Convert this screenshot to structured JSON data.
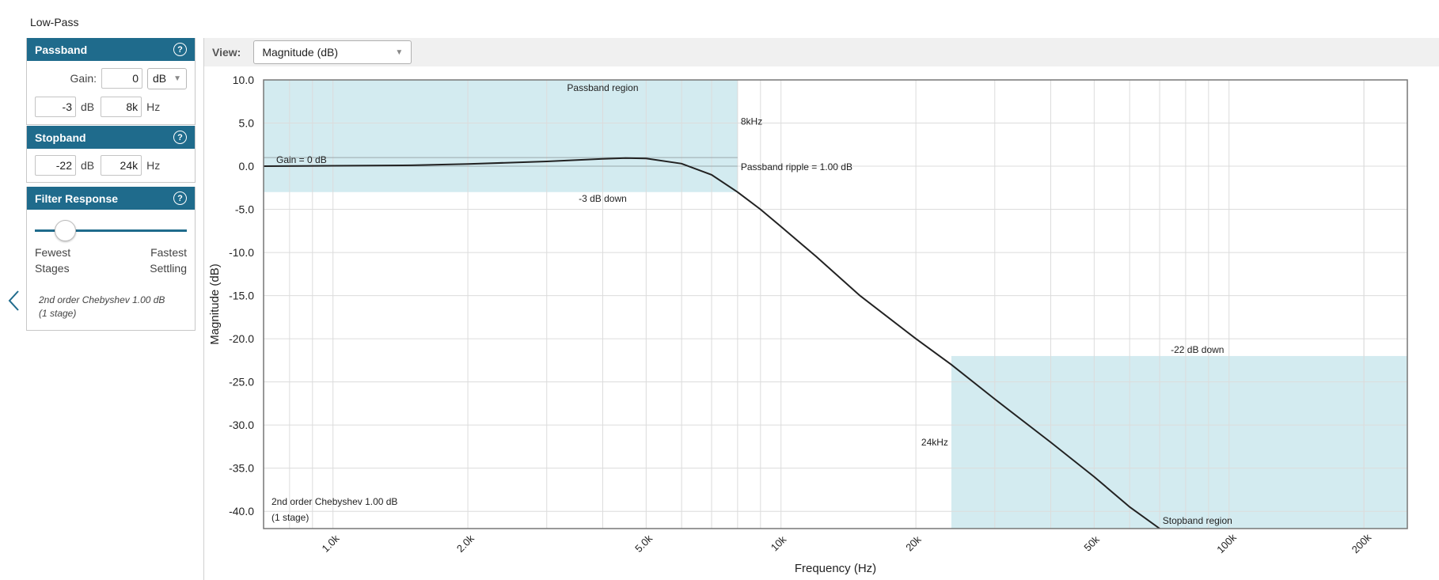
{
  "page_title": "Low-Pass",
  "passband": {
    "title": "Passband",
    "help": "?",
    "gain_label": "Gain:",
    "gain_value": "0",
    "gain_unit": "dB",
    "atten_value": "-3",
    "atten_unit": "dB",
    "freq_value": "8k",
    "freq_unit": "Hz"
  },
  "stopband": {
    "title": "Stopband",
    "help": "?",
    "atten_value": "-22",
    "atten_unit": "dB",
    "freq_value": "24k",
    "freq_unit": "Hz"
  },
  "filter_response": {
    "title": "Filter Response",
    "help": "?",
    "left_label_1": "Fewest",
    "left_label_2": "Stages",
    "right_label_1": "Fastest",
    "right_label_2": "Settling",
    "slider_value": 0.15,
    "desc_line1": "2nd order Chebyshev 1.00 dB",
    "desc_line2": "(1 stage)"
  },
  "toolbar": {
    "view_label": "View:",
    "view_value": "Magnitude (dB)"
  },
  "colors": {
    "header_bg": "#1f6b8c",
    "region_fill": "#d3ebf0",
    "curve": "#222222",
    "grid": "#dcdcdc"
  },
  "chart_data": {
    "type": "line",
    "xlabel": "Frequency (Hz)",
    "ylabel": "Magnitude (dB)",
    "x_scale": "log",
    "xlim": [
      700,
      250000
    ],
    "ylim": [
      -42,
      10
    ],
    "grid": true,
    "x_ticks": [
      {
        "v": 1000,
        "label": "1.0k"
      },
      {
        "v": 2000,
        "label": "2.0k"
      },
      {
        "v": 5000,
        "label": "5.0k"
      },
      {
        "v": 10000,
        "label": "10k"
      },
      {
        "v": 20000,
        "label": "20k"
      },
      {
        "v": 50000,
        "label": "50k"
      },
      {
        "v": 100000,
        "label": "100k"
      },
      {
        "v": 200000,
        "label": "200k"
      }
    ],
    "y_ticks": [
      {
        "v": 10,
        "label": "10.0"
      },
      {
        "v": 5,
        "label": "5.0"
      },
      {
        "v": 0,
        "label": "0.0"
      },
      {
        "v": -5,
        "label": "-5.0"
      },
      {
        "v": -10,
        "label": "-10.0"
      },
      {
        "v": -15,
        "label": "-15.0"
      },
      {
        "v": -20,
        "label": "-20.0"
      },
      {
        "v": -25,
        "label": "-25.0"
      },
      {
        "v": -30,
        "label": "-30.0"
      },
      {
        "v": -35,
        "label": "-35.0"
      },
      {
        "v": -40,
        "label": "-40.0"
      }
    ],
    "series": [
      {
        "x": [
          700,
          1000,
          1500,
          2000,
          3000,
          4000,
          4500,
          5000,
          6000,
          7000,
          8000,
          9000,
          10000,
          12000,
          15000,
          20000,
          24000,
          30000,
          40000,
          50000,
          60000,
          70000
        ],
        "y": [
          0.0,
          0.05,
          0.1,
          0.25,
          0.55,
          0.85,
          0.95,
          0.9,
          0.3,
          -1.0,
          -3.0,
          -5.0,
          -7.0,
          -10.5,
          -15.0,
          -20.0,
          -23.0,
          -27.0,
          -32.0,
          -36.0,
          -39.5,
          -42.0
        ]
      }
    ],
    "passband_region": {
      "x": [
        700,
        8000
      ],
      "y": [
        -3,
        10
      ]
    },
    "stopband_region": {
      "x": [
        24000,
        250000
      ],
      "y": [
        -42,
        -22
      ]
    },
    "gain_line_db": 0,
    "ripple_line_db": 1,
    "annotations": {
      "passband_region": "Passband region",
      "passband_freq": "8kHz",
      "ripple": "Passband ripple = 1.00 dB",
      "gain": "Gain = 0 dB",
      "three_db": "-3 dB down",
      "twentytwo_db": "-22 dB down",
      "stopband_freq": "24kHz",
      "stopband_region": "Stopband region",
      "filter_line1": "2nd order Chebyshev 1.00 dB",
      "filter_line2": "(1 stage)"
    }
  }
}
